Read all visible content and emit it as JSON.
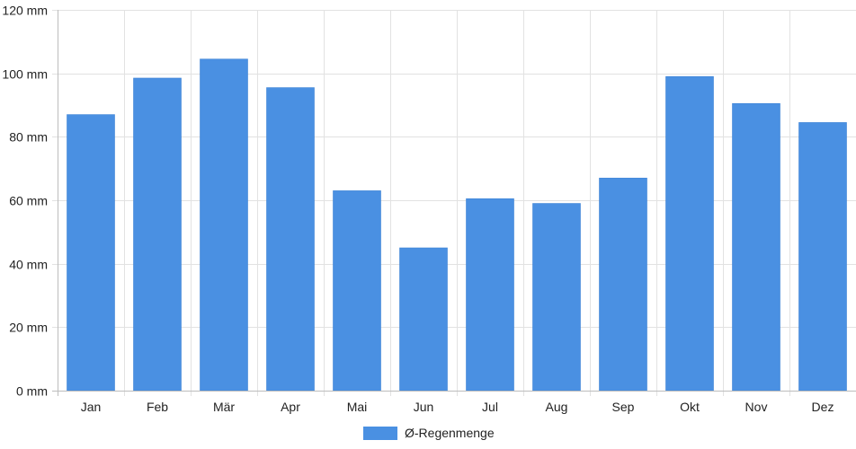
{
  "chart_data": {
    "type": "bar",
    "categories": [
      "Jan",
      "Feb",
      "Mär",
      "Apr",
      "Mai",
      "Jun",
      "Jul",
      "Aug",
      "Sep",
      "Okt",
      "Nov",
      "Dez"
    ],
    "series": [
      {
        "name": "Ø-Regenmenge",
        "color": "#4a90e2",
        "values": [
          87,
          98.5,
          104.5,
          95.5,
          63,
          45,
          60.5,
          59,
          67,
          99,
          90.5,
          84.5
        ]
      }
    ],
    "ylim": [
      0,
      120
    ],
    "yticks": [
      0,
      20,
      40,
      60,
      80,
      100,
      120
    ],
    "ytick_labels": [
      "0 mm",
      "20 mm",
      "40 mm",
      "60 mm",
      "80 mm",
      "100 mm",
      "120 mm"
    ],
    "grid": true,
    "legend_position": "bottom-center"
  }
}
